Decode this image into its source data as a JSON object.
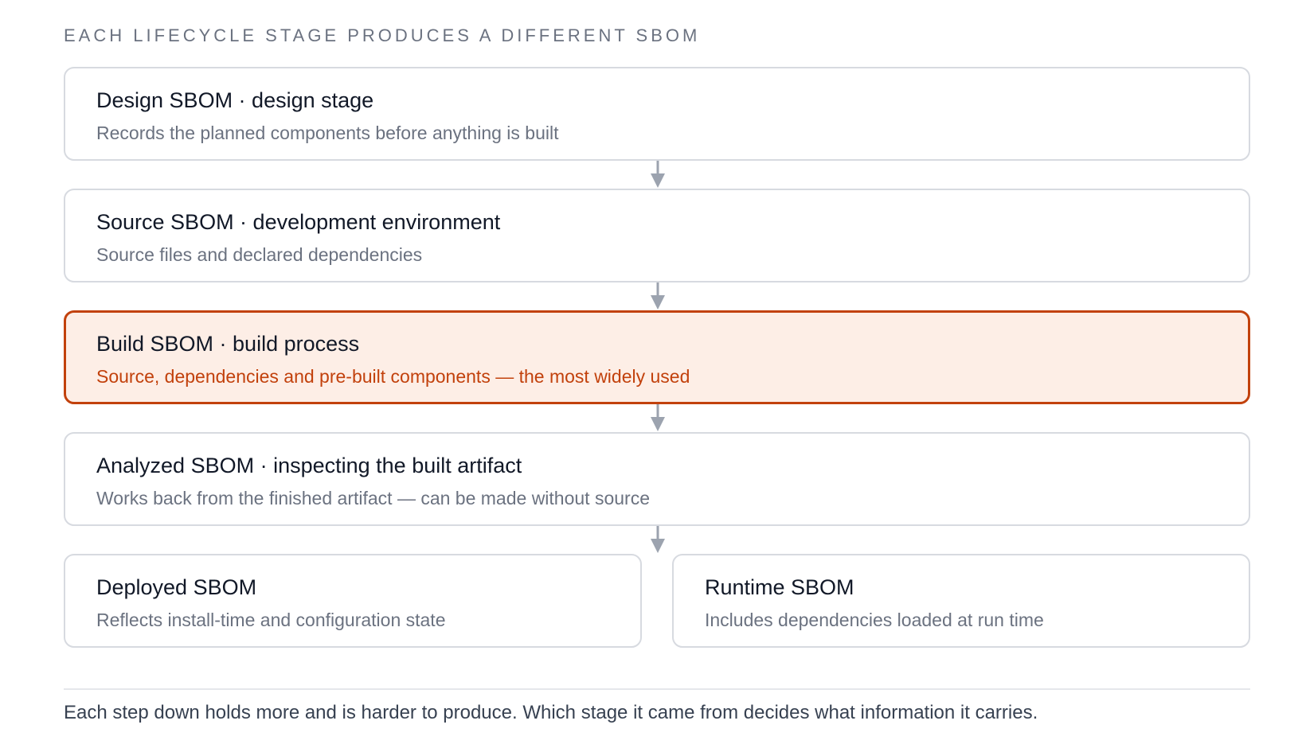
{
  "heading": "EACH LIFECYCLE STAGE PRODUCES A DIFFERENT SBOM",
  "stages": [
    {
      "title": "Design SBOM · design stage",
      "description": "Records the planned components before anything is built"
    },
    {
      "title": "Source SBOM · development environment",
      "description": "Source files and declared dependencies"
    },
    {
      "title": "Build SBOM · build process",
      "description": "Source, dependencies and pre-built components — the most widely used"
    },
    {
      "title": "Analyzed SBOM · inspecting the built artifact",
      "description": "Works back from the finished artifact — can be made without source"
    },
    {
      "title": "Deployed SBOM",
      "description": "Reflects install-time and configuration state"
    },
    {
      "title": "Runtime SBOM",
      "description": "Includes dependencies loaded at run time"
    }
  ],
  "highlighted_stage": "Build SBOM · build process",
  "footnote": "Each step down holds more and is harder to produce. Which stage it came from decides what information it carries.",
  "colors": {
    "accent": "#c2410c",
    "accent_bg": "#fdeee6",
    "border": "#d7dae0",
    "arrow": "#9ca3af"
  }
}
